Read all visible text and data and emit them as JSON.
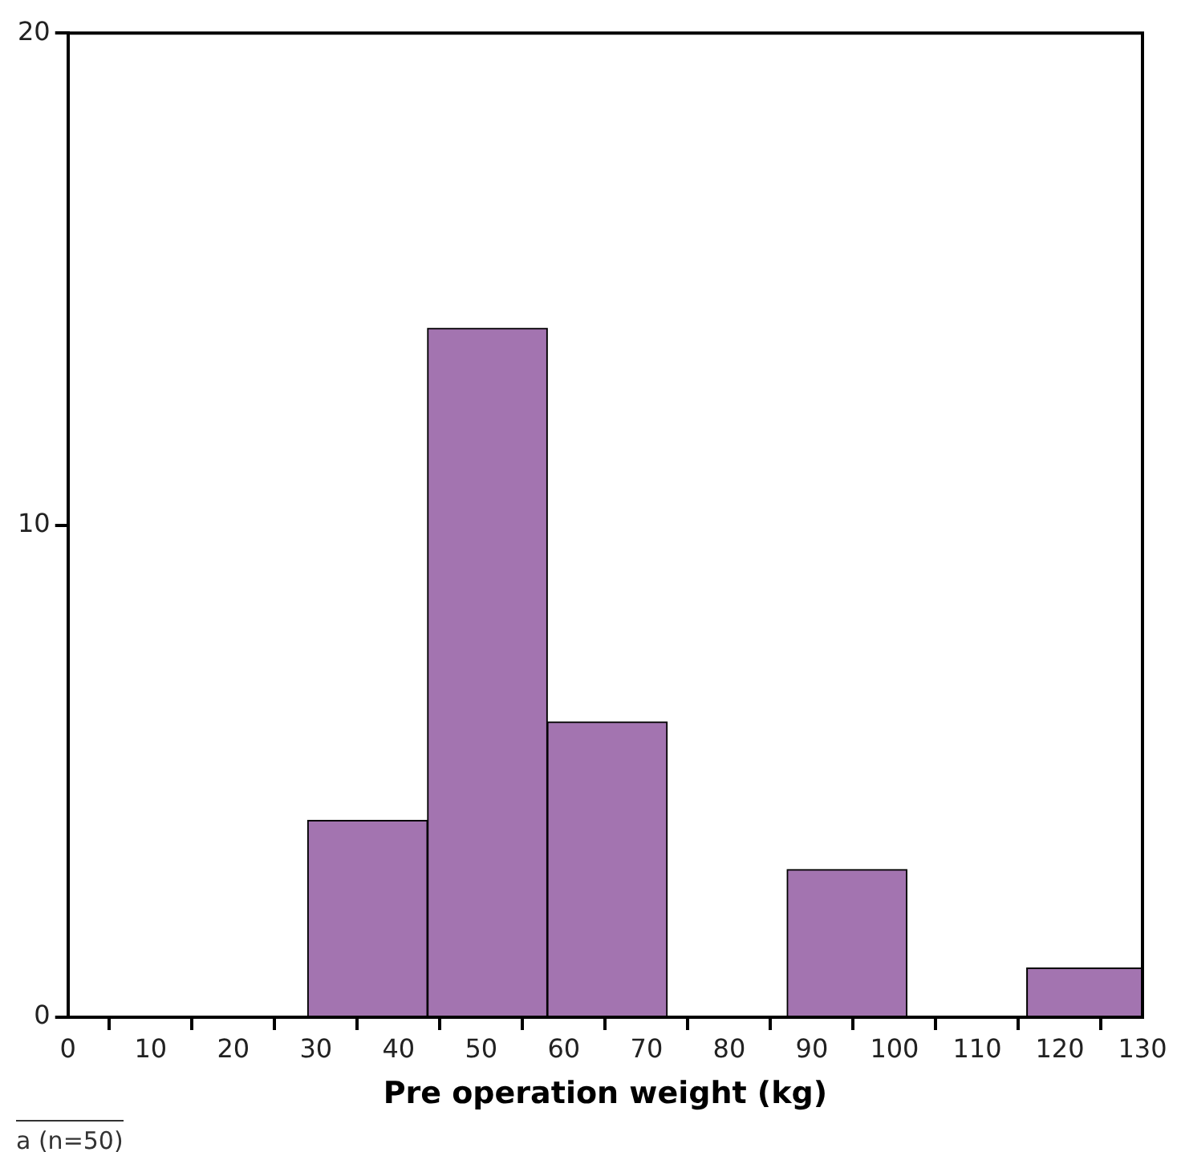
{
  "chart_data": {
    "type": "histogram",
    "xlabel": "Pre operation weight (kg)",
    "bins": [
      29,
      43.5,
      58,
      72.5,
      87,
      101.5,
      116,
      130
    ],
    "values": [
      4,
      14,
      6,
      0,
      3,
      0,
      1
    ],
    "color": "#a374b0",
    "xlim": [
      0,
      130
    ],
    "xticks": [
      0,
      10,
      20,
      30,
      40,
      50,
      60,
      70,
      80,
      90,
      100,
      110,
      120,
      130
    ],
    "ylim": [
      0,
      20
    ],
    "yticks": [
      0,
      10,
      20
    ],
    "grid": false,
    "legend": false,
    "annotations": [
      "a (n=50)"
    ]
  }
}
